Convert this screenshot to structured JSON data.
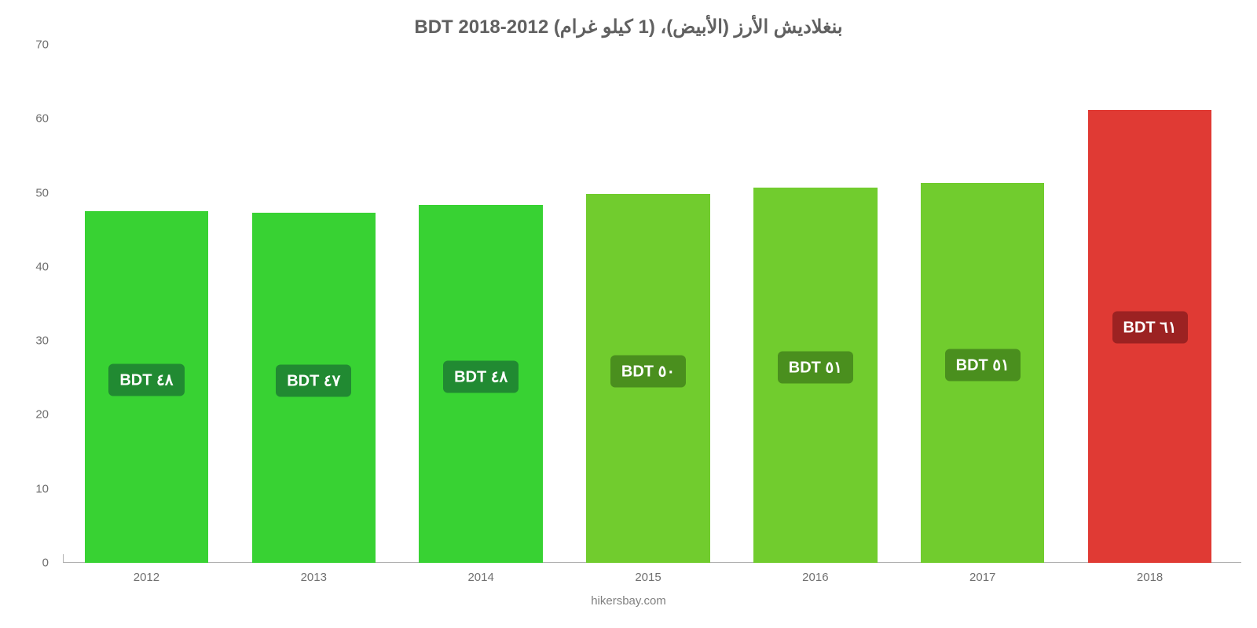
{
  "chart": {
    "type": "bar",
    "title": "بنغلاديش الأرز (الأبيض)، (1 كيلو غرام) 2012-2018 BDT",
    "title_color": "#606060",
    "title_fontsize": 24,
    "categories": [
      "2012",
      "2013",
      "2014",
      "2015",
      "2016",
      "2017",
      "2018"
    ],
    "values": [
      47.5,
      47.3,
      48.4,
      49.8,
      50.7,
      51.3,
      61.2
    ],
    "bar_labels": [
      "٤٨ BDT",
      "٤٧ BDT",
      "٤٨ BDT",
      "٥٠ BDT",
      "٥١ BDT",
      "٥١ BDT",
      "٦١ BDT"
    ],
    "bar_label_bg": [
      "#218a32",
      "#218a32",
      "#218a32",
      "#4a8f1e",
      "#4a8f1e",
      "#4a8f1e",
      "#9c2222"
    ],
    "bar_colors": [
      "#38d233",
      "#38d233",
      "#38d233",
      "#71cc2e",
      "#71cc2e",
      "#71cc2e",
      "#e03a34"
    ],
    "bar_width_pct": 74,
    "ylim": [
      0,
      70
    ],
    "yticks": [
      0,
      10,
      20,
      30,
      40,
      50,
      60,
      70
    ],
    "background_color": "#ffffff",
    "axis_label_color": "#707070",
    "baseline_color": "#b0b0b0",
    "label_fontsize": 15,
    "bar_label_fontsize": 20,
    "bar_label_top_pct": 48,
    "y_axis_short_line_height_pct": 1.6,
    "attribution": "hikersbay.com",
    "attribution_color": "#808080"
  }
}
